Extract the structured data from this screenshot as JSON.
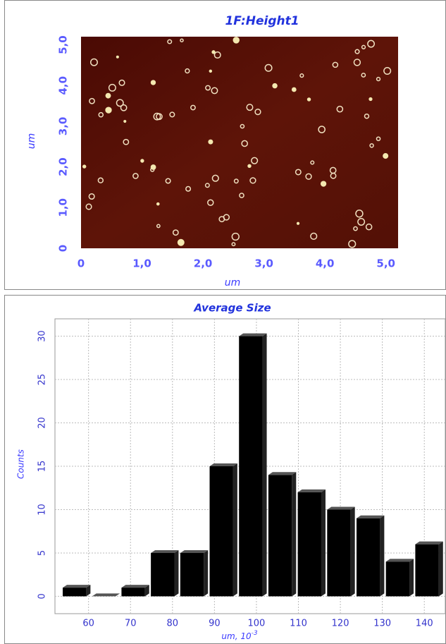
{
  "chart_data": [
    {
      "type": "image",
      "title": "1F:Height1",
      "xlabel": "um",
      "ylabel": "um",
      "xlim": [
        0,
        5.2
      ],
      "ylim": [
        0,
        5.2
      ],
      "xticks": [
        0,
        {
          "value": 1,
          "label": "1,0"
        },
        {
          "value": 2,
          "label": "2,0"
        },
        {
          "value": 3,
          "label": "3,0"
        },
        {
          "value": 4,
          "label": "4,0"
        },
        {
          "value": 5,
          "label": "5,0"
        }
      ],
      "yticks": [
        0,
        {
          "value": 1,
          "label": "1,0"
        },
        {
          "value": 2,
          "label": "2,0"
        },
        {
          "value": 3,
          "label": "3,0"
        },
        {
          "value": 4,
          "label": "4,0"
        },
        {
          "value": 5,
          "label": "5,0"
        }
      ]
    },
    {
      "type": "histogram",
      "title": "Average Size",
      "xlabel": "um, 10",
      "xlabel_exponent": "-3",
      "ylabel": "Counts",
      "bins": [
        53.5,
        60.5,
        67.5,
        74.5,
        81.5,
        88.5,
        95.5,
        102.5,
        109.5,
        116.5,
        123.5,
        130.5,
        137.5,
        144.5
      ],
      "values": [
        1,
        0,
        1,
        5,
        5,
        15,
        30,
        14,
        12,
        10,
        9,
        4,
        6
      ],
      "color": "#000000",
      "xlim": [
        52,
        145
      ],
      "ylim": [
        -2,
        32
      ],
      "xticks": [
        60,
        70,
        80,
        90,
        100,
        110,
        120,
        130,
        140
      ],
      "yticks": [
        0,
        5,
        10,
        15,
        20,
        25,
        30
      ],
      "grid": true
    }
  ]
}
